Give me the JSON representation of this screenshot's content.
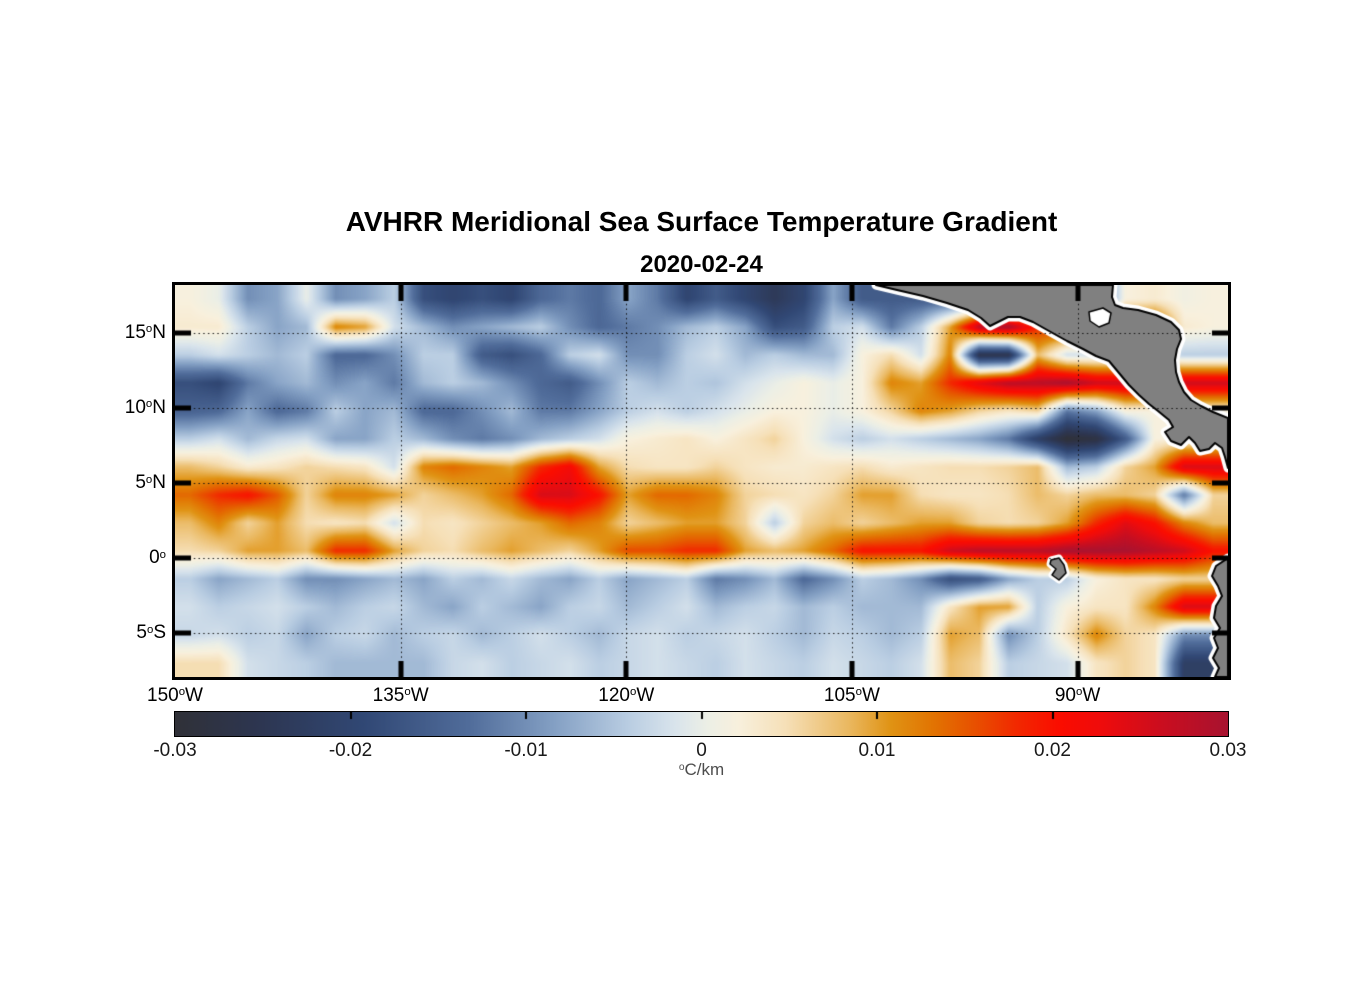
{
  "header": {
    "title": "AVHRR Meridional Sea Surface Temperature Gradient",
    "subtitle": "2020-02-24"
  },
  "chart_data": {
    "type": "heatmap",
    "title": "AVHRR Meridional Sea Surface Temperature Gradient",
    "subtitle": "2020-02-24",
    "geo": {
      "lon_range": [
        -150,
        -80
      ],
      "lat_range": [
        -7.9,
        18.2
      ],
      "region": "Eastern tropical Pacific with Central America, Galapagos and Colombia coast in gray"
    },
    "x_ticks": [
      {
        "lon": -150,
        "text": "150",
        "sup": "o",
        "suffix": "W"
      },
      {
        "lon": -135,
        "text": "135",
        "sup": "o",
        "suffix": "W"
      },
      {
        "lon": -120,
        "text": "120",
        "sup": "o",
        "suffix": "W"
      },
      {
        "lon": -105,
        "text": "105",
        "sup": "o",
        "suffix": "W"
      },
      {
        "lon": -90,
        "text": "90",
        "sup": "o",
        "suffix": "W"
      }
    ],
    "y_ticks": [
      {
        "lat": 15,
        "text": "15",
        "sup": "o",
        "suffix": "N"
      },
      {
        "lat": 10,
        "text": "10",
        "sup": "o",
        "suffix": "N"
      },
      {
        "lat": 5,
        "text": "5",
        "sup": "o",
        "suffix": "N"
      },
      {
        "lat": 0,
        "text": "0",
        "sup": "o",
        "suffix": ""
      },
      {
        "lat": -5,
        "text": "5",
        "sup": "o",
        "suffix": "S"
      }
    ],
    "gridlines": "dotted",
    "grid": {
      "comment": "Coarse visual read of the field; values in 0.001 degC/km, null = under land mask",
      "cols": 36,
      "rows": 14,
      "units": "degC/km",
      "scale": 0.001,
      "lon_start": -148.1,
      "lon_step": 1.944,
      "lat_start": 17.3,
      "lat_step": -1.868,
      "values_milli": [
        [
          2,
          0,
          -10,
          -8,
          0,
          -10,
          -8,
          -4,
          -18,
          -20,
          -18,
          -20,
          -14,
          -12,
          -14,
          -8,
          -12,
          -20,
          -16,
          -20,
          -24,
          -20,
          -8,
          -16,
          null,
          null,
          null,
          null,
          null,
          null,
          null,
          null,
          2,
          3,
          1,
          2
        ],
        [
          3,
          3,
          -4,
          -8,
          -6,
          12,
          10,
          -2,
          -6,
          -10,
          -8,
          -6,
          -4,
          -10,
          -14,
          -12,
          -10,
          -6,
          -4,
          -8,
          -18,
          -16,
          -4,
          -2,
          -12,
          -4,
          10,
          28,
          30,
          18,
          null,
          null,
          null,
          null,
          3,
          2
        ],
        [
          -4,
          -2,
          -4,
          -6,
          -4,
          -14,
          -14,
          -10,
          -4,
          -4,
          -16,
          -18,
          -14,
          -4,
          -2,
          -10,
          -10,
          -4,
          -2,
          -6,
          -4,
          -6,
          -6,
          2,
          5,
          -2,
          12,
          -26,
          -26,
          8,
          -2,
          null,
          null,
          null,
          -4,
          -4
        ],
        [
          -18,
          -20,
          -12,
          -8,
          -6,
          -10,
          -8,
          -12,
          -6,
          -4,
          -6,
          -10,
          -14,
          -16,
          -10,
          -4,
          -6,
          -4,
          -5,
          -2,
          0,
          2,
          0,
          2,
          12,
          10,
          18,
          24,
          28,
          28,
          30,
          26,
          null,
          null,
          null,
          null
        ],
        [
          -15,
          -14,
          -8,
          -14,
          -12,
          -4,
          -8,
          -6,
          -14,
          -14,
          -10,
          -6,
          -12,
          -12,
          -8,
          -4,
          -2,
          -4,
          -2,
          0,
          2,
          2,
          0,
          2,
          6,
          12,
          10,
          6,
          4,
          6,
          -12,
          -8,
          2,
          null,
          null,
          null
        ],
        [
          -4,
          -2,
          -6,
          -3,
          -2,
          -8,
          -8,
          -4,
          -6,
          -10,
          -12,
          -10,
          -6,
          -4,
          -2,
          2,
          3,
          4,
          2,
          4,
          6,
          2,
          -2,
          -4,
          -2,
          -4,
          -6,
          -8,
          -12,
          -22,
          -30,
          -28,
          -16,
          2,
          null,
          null
        ],
        [
          8,
          6,
          3,
          4,
          6,
          5,
          4,
          -2,
          12,
          14,
          12,
          10,
          18,
          22,
          10,
          5,
          4,
          4,
          6,
          4,
          3,
          3,
          4,
          5,
          3,
          4,
          5,
          5,
          6,
          8,
          -6,
          -4,
          6,
          10,
          25,
          null
        ],
        [
          14,
          18,
          20,
          15,
          6,
          12,
          12,
          10,
          6,
          8,
          10,
          14,
          25,
          25,
          20,
          10,
          14,
          14,
          12,
          6,
          5,
          4,
          6,
          10,
          10,
          5,
          4,
          4,
          5,
          8,
          6,
          8,
          8,
          6,
          -12,
          6
        ],
        [
          8,
          12,
          6,
          10,
          5,
          4,
          5,
          -2,
          5,
          4,
          6,
          8,
          10,
          14,
          12,
          6,
          8,
          10,
          10,
          6,
          -4,
          6,
          8,
          6,
          8,
          10,
          10,
          6,
          5,
          6,
          10,
          18,
          24,
          20,
          12,
          8
        ],
        [
          5,
          6,
          10,
          10,
          8,
          18,
          18,
          10,
          6,
          5,
          8,
          10,
          8,
          6,
          10,
          16,
          16,
          18,
          18,
          10,
          8,
          10,
          14,
          20,
          20,
          20,
          26,
          28,
          28,
          28,
          30,
          30,
          30,
          28,
          26,
          20
        ],
        [
          -4,
          -8,
          -6,
          -4,
          -10,
          -10,
          -8,
          -6,
          -8,
          -4,
          -6,
          -3,
          -6,
          -8,
          -4,
          -8,
          -6,
          -4,
          -12,
          -10,
          -6,
          -14,
          -10,
          -4,
          -6,
          -10,
          -18,
          -16,
          -8,
          -4,
          -4,
          2,
          4,
          4,
          6,
          null
        ],
        [
          -2,
          -4,
          -3,
          -2,
          -4,
          -6,
          -4,
          -3,
          -6,
          -8,
          -4,
          -6,
          -8,
          -4,
          -3,
          -6,
          -4,
          -2,
          -6,
          -4,
          -3,
          -6,
          -4,
          -6,
          -6,
          -6,
          4,
          10,
          10,
          -4,
          2,
          4,
          4,
          12,
          25,
          null
        ],
        [
          -3,
          -2,
          -4,
          -3,
          -8,
          -4,
          -3,
          -6,
          -4,
          -3,
          -6,
          -4,
          -2,
          -4,
          -6,
          -3,
          -2,
          -4,
          -3,
          -2,
          -4,
          -6,
          -3,
          -4,
          -6,
          -4,
          10,
          8,
          -10,
          -4,
          4,
          12,
          6,
          4,
          -10,
          null
        ],
        [
          5,
          5,
          -2,
          -3,
          -4,
          -6,
          -6,
          -6,
          -6,
          -3,
          -2,
          -4,
          -3,
          -2,
          -4,
          -3,
          -2,
          -3,
          -4,
          -2,
          -3,
          -4,
          -2,
          -3,
          -4,
          -2,
          8,
          6,
          -4,
          -3,
          -2,
          4,
          6,
          4,
          -22,
          null
        ]
      ]
    },
    "colorbar": {
      "min": -0.03,
      "max": 0.03,
      "tick_labels": [
        "-0.03",
        "-0.02",
        "-0.01",
        "0",
        "0.01",
        "0.02",
        "0.03"
      ],
      "unit_sup": "o",
      "unit_rest": "C/km",
      "colormap_stops": [
        [
          0.0,
          "#303138"
        ],
        [
          0.08,
          "#2d3651"
        ],
        [
          0.18,
          "#314875"
        ],
        [
          0.28,
          "#516d9b"
        ],
        [
          0.36,
          "#84a0c4"
        ],
        [
          0.43,
          "#b9cde2"
        ],
        [
          0.475,
          "#d9e4ec"
        ],
        [
          0.505,
          "#ecefe6"
        ],
        [
          0.535,
          "#f8f0dd"
        ],
        [
          0.58,
          "#f6e0b8"
        ],
        [
          0.64,
          "#eab860"
        ],
        [
          0.68,
          "#e09314"
        ],
        [
          0.72,
          "#e27402"
        ],
        [
          0.76,
          "#e85000"
        ],
        [
          0.8,
          "#f22800"
        ],
        [
          0.84,
          "#fb0d00"
        ],
        [
          0.88,
          "#ef0c0c"
        ],
        [
          0.94,
          "#c90e20"
        ],
        [
          1.0,
          "#a81330"
        ]
      ]
    },
    "land": {
      "fill": "#808080",
      "outline": "#000000",
      "halo": "#ffffff",
      "polygons": {
        "central_america": [
          [
            701,
            0
          ],
          [
            722,
            5
          ],
          [
            748,
            11
          ],
          [
            772,
            18
          ],
          [
            793,
            25
          ],
          [
            806,
            33
          ],
          [
            815,
            41
          ],
          [
            823,
            37
          ],
          [
            833,
            32
          ],
          [
            845,
            32
          ],
          [
            858,
            37
          ],
          [
            874,
            46
          ],
          [
            892,
            56
          ],
          [
            908,
            64
          ],
          [
            921,
            71
          ],
          [
            934,
            76
          ],
          [
            944,
            88
          ],
          [
            954,
            100
          ],
          [
            964,
            110
          ],
          [
            974,
            119
          ],
          [
            983,
            126
          ],
          [
            994,
            135
          ],
          [
            998,
            142
          ],
          [
            990,
            147
          ],
          [
            996,
            156
          ],
          [
            1006,
            160
          ],
          [
            1014,
            152
          ],
          [
            1020,
            158
          ],
          [
            1025,
            166
          ],
          [
            1034,
            164
          ],
          [
            1040,
            158
          ],
          [
            1047,
            163
          ],
          [
            1050,
            172
          ],
          [
            1053,
            183
          ],
          [
            1053,
            133
          ],
          [
            1038,
            127
          ],
          [
            1026,
            121
          ],
          [
            1016,
            115
          ],
          [
            1009,
            107
          ],
          [
            1004,
            97
          ],
          [
            1001,
            87
          ],
          [
            1000,
            75
          ],
          [
            1002,
            64
          ],
          [
            1006,
            54
          ],
          [
            1004,
            45
          ],
          [
            996,
            37
          ],
          [
            981,
            30
          ],
          [
            963,
            25
          ],
          [
            948,
            23
          ],
          [
            940,
            20
          ],
          [
            937,
            12
          ],
          [
            938,
            0
          ]
        ],
        "gulf_of_honduras_notch": [
          [
            914,
            27
          ],
          [
            928,
            23
          ],
          [
            936,
            28
          ],
          [
            934,
            38
          ],
          [
            924,
            42
          ],
          [
            915,
            36
          ]
        ],
        "colombia_coast": [
          [
            1053,
            273
          ],
          [
            1041,
            281
          ],
          [
            1037,
            291
          ],
          [
            1043,
            301
          ],
          [
            1047,
            311
          ],
          [
            1041,
            321
          ],
          [
            1039,
            333
          ],
          [
            1045,
            343
          ],
          [
            1039,
            353
          ],
          [
            1043,
            363
          ],
          [
            1038,
            373
          ],
          [
            1044,
            383
          ],
          [
            1040,
            392
          ],
          [
            1053,
            392
          ]
        ],
        "galapagos": [
          [
            876,
            275
          ],
          [
            884,
            273
          ],
          [
            889,
            280
          ],
          [
            891,
            288
          ],
          [
            884,
            295
          ],
          [
            877,
            290
          ],
          [
            881,
            284
          ],
          [
            875,
            279
          ]
        ]
      }
    }
  }
}
